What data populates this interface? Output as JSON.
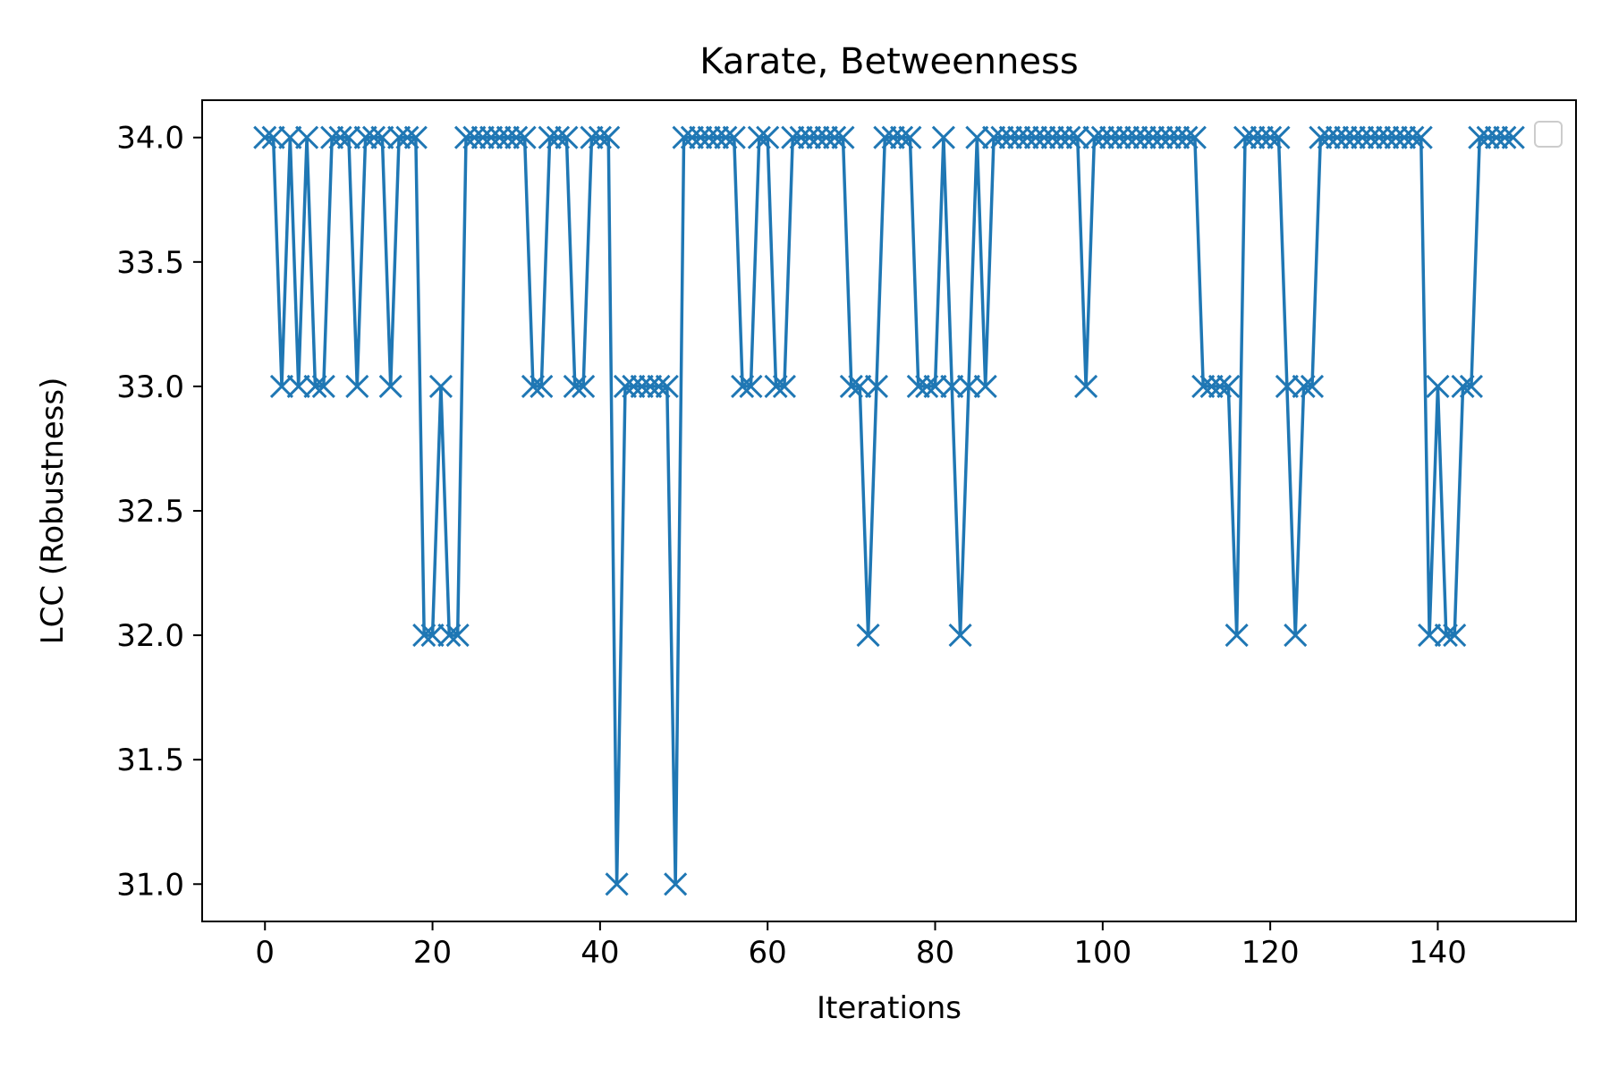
{
  "chart_data": {
    "type": "line",
    "title": "Karate, Betweenness",
    "xlabel": "Iterations",
    "ylabel": "LCC (Robustness)",
    "xlim": [
      -7.5,
      156.5
    ],
    "ylim": [
      30.85,
      34.15
    ],
    "xticks": [
      0,
      20,
      40,
      60,
      80,
      100,
      120,
      140
    ],
    "xtick_labels": [
      "0",
      "20",
      "40",
      "60",
      "80",
      "100",
      "120",
      "140"
    ],
    "yticks": [
      31.0,
      31.5,
      32.0,
      32.5,
      33.0,
      33.5,
      34.0
    ],
    "ytick_labels": [
      "31.0",
      "31.5",
      "32.0",
      "32.5",
      "33.0",
      "33.5",
      "34.0"
    ],
    "grid": false,
    "legend": "top-right (empty)",
    "series": [
      {
        "color": "#1f77b4",
        "marker": "x",
        "x": [
          0,
          1,
          2,
          3,
          4,
          5,
          6,
          7,
          8,
          9,
          10,
          11,
          12,
          13,
          14,
          15,
          16,
          17,
          18,
          19,
          20,
          21,
          22,
          23,
          24,
          25,
          26,
          27,
          28,
          29,
          30,
          31,
          32,
          33,
          34,
          35,
          36,
          37,
          38,
          39,
          40,
          41,
          42,
          43,
          44,
          45,
          46,
          47,
          48,
          49,
          50,
          51,
          52,
          53,
          54,
          55,
          56,
          57,
          58,
          59,
          60,
          61,
          62,
          63,
          64,
          65,
          66,
          67,
          68,
          69,
          70,
          71,
          72,
          73,
          74,
          75,
          76,
          77,
          78,
          79,
          80,
          81,
          82,
          83,
          84,
          85,
          86,
          87,
          88,
          89,
          90,
          91,
          92,
          93,
          94,
          95,
          96,
          97,
          98,
          99,
          100,
          101,
          102,
          103,
          104,
          105,
          106,
          107,
          108,
          109,
          110,
          111,
          112,
          113,
          114,
          115,
          116,
          117,
          118,
          119,
          120,
          121,
          122,
          123,
          124,
          125,
          126,
          127,
          128,
          129,
          130,
          131,
          132,
          133,
          134,
          135,
          136,
          137,
          138,
          139,
          140,
          141,
          142,
          143,
          144,
          145,
          146,
          147,
          148,
          149
        ],
        "y": [
          34,
          34,
          33,
          34,
          33,
          34,
          33,
          33,
          34,
          34,
          34,
          33,
          34,
          34,
          34,
          33,
          34,
          34,
          34,
          32,
          32,
          33,
          32,
          32,
          34,
          34,
          34,
          34,
          34,
          34,
          34,
          34,
          33,
          33,
          34,
          34,
          34,
          33,
          33,
          34,
          34,
          34,
          31,
          33,
          33,
          33,
          33,
          33,
          33,
          31,
          34,
          34,
          34,
          34,
          34,
          34,
          34,
          33,
          33,
          34,
          34,
          33,
          33,
          34,
          34,
          34,
          34,
          34,
          34,
          34,
          33,
          33,
          32,
          33,
          34,
          34,
          34,
          34,
          33,
          33,
          33,
          34,
          33,
          32,
          33,
          34,
          33,
          34,
          34,
          34,
          34,
          34,
          34,
          34,
          34,
          34,
          34,
          34,
          33,
          34,
          34,
          34,
          34,
          34,
          34,
          34,
          34,
          34,
          34,
          34,
          34,
          34,
          33,
          33,
          33,
          33,
          32,
          34,
          34,
          34,
          34,
          34,
          33,
          32,
          33,
          33,
          34,
          34,
          34,
          34,
          34,
          34,
          34,
          34,
          34,
          34,
          34,
          34,
          34,
          32,
          33,
          32,
          32,
          33,
          33,
          34,
          34,
          34,
          34,
          34
        ]
      }
    ]
  }
}
